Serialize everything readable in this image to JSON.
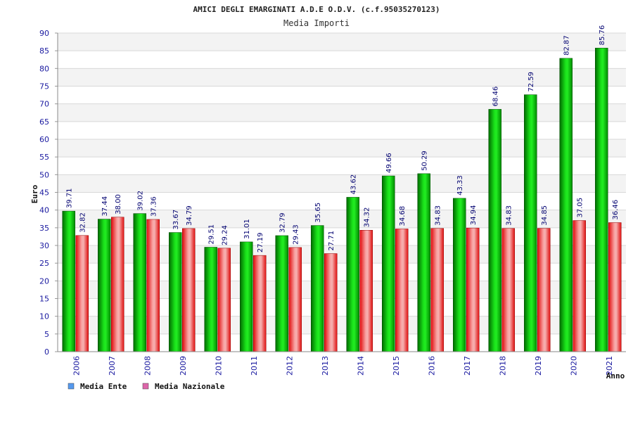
{
  "chart_data": {
    "type": "bar",
    "title": "AMICI DEGLI EMARGINATI A.D.E O.D.V. (c.f.95035270123)",
    "subtitle": "Media Importi",
    "xlabel": "Anno",
    "ylabel": "Euro",
    "ylim": [
      0,
      90
    ],
    "ytick_step": 5,
    "grid": true,
    "legend_position": "bottom-left",
    "categories": [
      "2006",
      "2007",
      "2008",
      "2009",
      "2010",
      "2011",
      "2012",
      "2013",
      "2014",
      "2015",
      "2016",
      "2017",
      "2018",
      "2019",
      "2020",
      "2021"
    ],
    "series": [
      {
        "name": "Media Ente",
        "color": "#00b000",
        "legend_color": "#5599ee",
        "values": [
          39.71,
          37.44,
          39.02,
          33.67,
          29.51,
          31.01,
          32.79,
          35.65,
          43.62,
          49.66,
          50.29,
          43.33,
          68.46,
          72.59,
          82.87,
          85.76
        ],
        "labels": [
          "39.71",
          "37.44",
          "39.02",
          "33.67",
          "29.51",
          "31.01",
          "32.79",
          "35.65",
          "43.62",
          "49.66",
          "50.29",
          "43.33",
          "68.46",
          "72.59",
          "82.87",
          "85.76"
        ]
      },
      {
        "name": "Media Nazionale",
        "color": "#e81010",
        "legend_color": "#dd66aa",
        "values": [
          32.82,
          38.0,
          37.36,
          34.79,
          29.24,
          27.19,
          29.43,
          27.71,
          34.32,
          34.68,
          34.83,
          34.94,
          34.83,
          34.85,
          37.05,
          36.46
        ],
        "labels": [
          "32.82",
          "38.00",
          "37.36",
          "34.79",
          "29.24",
          "27.19",
          "29.43",
          "27.71",
          "34.32",
          "34.68",
          "34.83",
          "34.94",
          "34.83",
          "34.85",
          "37.05",
          "36.46"
        ]
      }
    ]
  }
}
